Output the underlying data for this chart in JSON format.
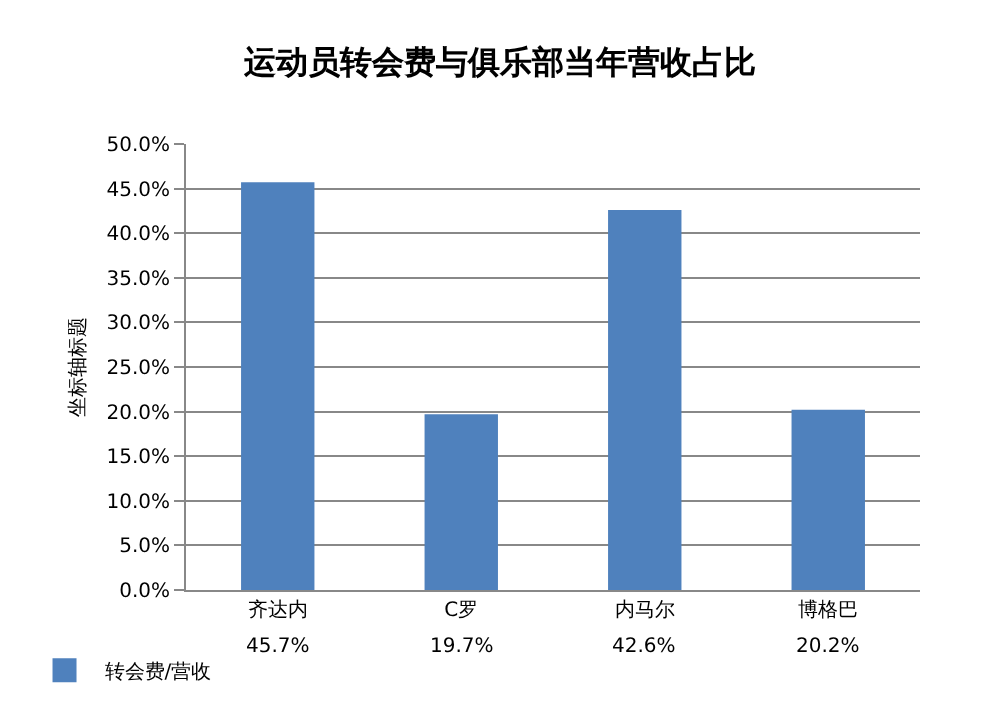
{
  "chart_data": {
    "type": "bar",
    "title": "运动员转会费与俱乐部当年营收占比",
    "ylabel": "坐标轴标题",
    "categories": [
      "齐达内",
      "C罗",
      "内马尔",
      "博格巴"
    ],
    "series": [
      {
        "name": "转会费/营收",
        "color": "#4f81bd",
        "values": [
          45.7,
          19.7,
          42.6,
          20.2
        ],
        "value_labels": [
          "45.7%",
          "19.7%",
          "42.6%",
          "20.2%"
        ]
      }
    ],
    "ylim": [
      0,
      50
    ],
    "yticks": [
      {
        "value": 0,
        "label": "0.0%"
      },
      {
        "value": 5,
        "label": "5.0%"
      },
      {
        "value": 10,
        "label": "10.0%"
      },
      {
        "value": 15,
        "label": "15.0%"
      },
      {
        "value": 20,
        "label": "20.0%"
      },
      {
        "value": 25,
        "label": "25.0%"
      },
      {
        "value": 30,
        "label": "30.0%"
      },
      {
        "value": 35,
        "label": "35.0%"
      },
      {
        "value": 40,
        "label": "40.0%"
      },
      {
        "value": 45,
        "label": "45.0%"
      },
      {
        "value": 50,
        "label": "50.0%"
      }
    ],
    "grid": "y",
    "legend": "bottom left"
  }
}
